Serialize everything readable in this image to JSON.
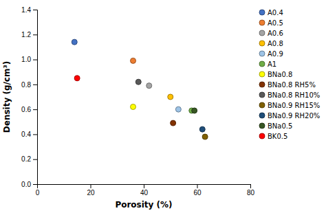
{
  "chart_data": {
    "type": "scatter",
    "xlabel": "Porosity (%)",
    "ylabel": "Density (g/cm³)",
    "xlim": [
      0,
      80
    ],
    "ylim": [
      0,
      1.4
    ],
    "xticks": [
      0,
      20,
      40,
      60,
      80
    ],
    "yticks": [
      {
        "value": 0,
        "label": "0.0"
      },
      0.2,
      0.4,
      0.6,
      0.8,
      {
        "value": 1,
        "label": "1.0"
      },
      1.2,
      1.4
    ],
    "legend": "upper right",
    "series": [
      {
        "name": "A0.4",
        "color": "#4472C4",
        "x": [
          14
        ],
        "values": [
          1.14
        ]
      },
      {
        "name": "A0.5",
        "color": "#ED7D31",
        "x": [
          36
        ],
        "values": [
          0.99
        ]
      },
      {
        "name": "A0.6",
        "color": "#A5A5A5",
        "x": [
          42
        ],
        "values": [
          0.79
        ]
      },
      {
        "name": "A0.8",
        "color": "#FFC000",
        "x": [
          50
        ],
        "values": [
          0.7
        ]
      },
      {
        "name": "A0.9",
        "color": "#9DC3E6",
        "x": [
          53
        ],
        "values": [
          0.6
        ]
      },
      {
        "name": "A1",
        "color": "#70AD47",
        "x": [
          58
        ],
        "values": [
          0.59
        ]
      },
      {
        "name": "BNa0.8",
        "color": "#FFFF00",
        "x": [
          36
        ],
        "values": [
          0.62
        ]
      },
      {
        "name": "BNa0.8 RH5%",
        "color": "#833200",
        "x": [
          51
        ],
        "values": [
          0.49
        ]
      },
      {
        "name": "BNa0.8 RH10%",
        "color": "#595959",
        "x": [
          38
        ],
        "values": [
          0.82
        ]
      },
      {
        "name": "BNa0.9 RH15%",
        "color": "#7F6000",
        "x": [
          63
        ],
        "values": [
          0.38
        ]
      },
      {
        "name": "BNa0.9 RH20%",
        "color": "#1F4E79",
        "x": [
          62
        ],
        "values": [
          0.44
        ]
      },
      {
        "name": "BNa0.5",
        "color": "#375623",
        "x": [
          59
        ],
        "values": [
          0.59
        ]
      },
      {
        "name": "BK0.5",
        "color": "#FF0000",
        "x": [
          15
        ],
        "values": [
          0.85
        ]
      }
    ]
  }
}
